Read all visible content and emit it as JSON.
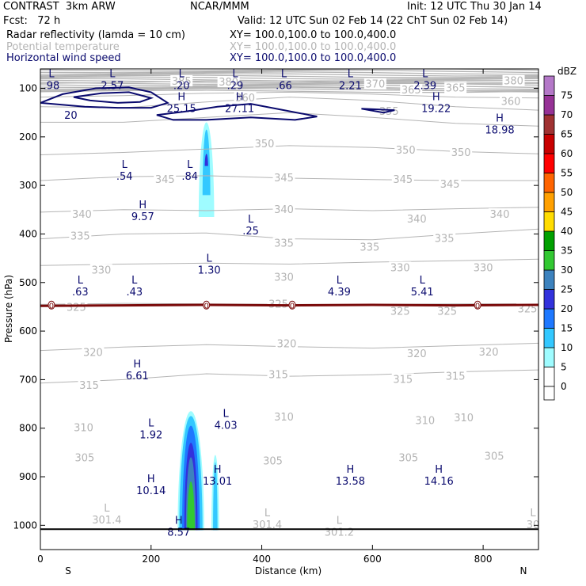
{
  "header": {
    "model": "CONTRAST  3km ARW",
    "org": "NCAR/MMM",
    "init": "Init: 12 UTC Thu 30 Jan 14",
    "fcst": "Fcst:   72 h",
    "valid": "Valid: 12 UTC Sun 02 Feb 14 (22 ChT Sun 02 Feb 14)",
    "fields": [
      {
        "name": "Radar reflectivity (lamda = 10 cm)",
        "xy": "XY= 100.0,100.0 to 100.0,400.0",
        "color": "#000000"
      },
      {
        "name": "Potential temperature",
        "xy": "XY= 100.0,100.0 to 100.0,400.0",
        "color": "#b4b4b4"
      },
      {
        "name": "Horizontal wind speed",
        "xy": "XY= 100.0,100.0 to 100.0,400.0",
        "color": "#0a0a6e"
      }
    ]
  },
  "chart_data": {
    "type": "cross-section",
    "xlabel": "Distance (km)",
    "ylabel": "Pressure (hPa)",
    "xlim": [
      0,
      900
    ],
    "ylim": [
      1050,
      60
    ],
    "xticks": [
      0,
      200,
      400,
      600,
      800
    ],
    "yticks": [
      100,
      200,
      300,
      400,
      500,
      600,
      700,
      800,
      900,
      1000
    ],
    "x_end_labels": {
      "left": "S",
      "right": "N"
    },
    "theta_contours": [
      {
        "value": 315,
        "x": [
          0,
          150,
          300,
          450,
          600,
          750,
          900
        ],
        "p": [
          707,
          700,
          688,
          693,
          690,
          684,
          680
        ]
      },
      {
        "value": 320,
        "x": [
          0,
          150,
          300,
          450,
          600,
          750,
          900
        ],
        "p": [
          640,
          633,
          628,
          632,
          635,
          630,
          625
        ]
      },
      {
        "value": 325,
        "x": [
          0,
          150,
          300,
          450,
          600,
          750,
          900
        ],
        "p": [
          545,
          543,
          544,
          545,
          545,
          544,
          544
        ]
      },
      {
        "value": 330,
        "x": [
          0,
          150,
          300,
          450,
          600,
          750,
          900
        ],
        "p": [
          465,
          462,
          460,
          462,
          458,
          455,
          452
        ]
      },
      {
        "value": 335,
        "x": [
          0,
          150,
          300,
          450,
          600,
          750,
          900
        ],
        "p": [
          410,
          400,
          398,
          410,
          412,
          400,
          390
        ]
      },
      {
        "value": 340,
        "x": [
          0,
          150,
          300,
          450,
          600,
          750,
          900
        ],
        "p": [
          355,
          350,
          352,
          348,
          352,
          348,
          345
        ]
      },
      {
        "value": 345,
        "x": [
          0,
          150,
          300,
          450,
          600,
          750,
          900
        ],
        "p": [
          290,
          282,
          280,
          285,
          288,
          290,
          290
        ]
      },
      {
        "value": 350,
        "x": [
          0,
          150,
          300,
          450,
          600,
          750,
          900
        ],
        "p": [
          237,
          232,
          225,
          218,
          222,
          230,
          235
        ]
      },
      {
        "value": 355,
        "x": [
          0,
          150,
          300,
          450,
          600,
          750,
          900
        ],
        "p": [
          170,
          170,
          160,
          150,
          160,
          172,
          178
        ]
      },
      {
        "value": 360,
        "x": [
          0,
          150,
          300,
          450,
          600,
          750,
          900
        ],
        "p": [
          138,
          140,
          128,
          118,
          125,
          138,
          145
        ]
      },
      {
        "value": 365,
        "x": [
          0,
          150,
          300,
          450,
          600,
          750,
          900
        ],
        "p": [
          118,
          115,
          110,
          108,
          112,
          118,
          120
        ]
      },
      {
        "value": 370,
        "x": [
          0,
          150,
          300,
          450,
          600,
          750,
          900
        ],
        "p": [
          105,
          103,
          100,
          98,
          100,
          105,
          108
        ]
      },
      {
        "value": 380,
        "x": [
          0,
          150,
          300,
          450,
          600,
          750,
          900
        ],
        "p": [
          90,
          88,
          85,
          85,
          88,
          90,
          90
        ]
      }
    ],
    "theta_labels": [
      {
        "text": "305",
        "x": 80,
        "p": 862
      },
      {
        "text": "305",
        "x": 420,
        "p": 868
      },
      {
        "text": "305",
        "x": 665,
        "p": 862
      },
      {
        "text": "305",
        "x": 820,
        "p": 858
      },
      {
        "text": "310",
        "x": 78,
        "p": 800
      },
      {
        "text": "310",
        "x": 440,
        "p": 778
      },
      {
        "text": "310",
        "x": 695,
        "p": 785
      },
      {
        "text": "310",
        "x": 765,
        "p": 779
      },
      {
        "text": "315",
        "x": 88,
        "p": 712
      },
      {
        "text": "315",
        "x": 430,
        "p": 690
      },
      {
        "text": "315",
        "x": 655,
        "p": 700
      },
      {
        "text": "315",
        "x": 750,
        "p": 694
      },
      {
        "text": "320",
        "x": 95,
        "p": 645
      },
      {
        "text": "320",
        "x": 445,
        "p": 627
      },
      {
        "text": "320",
        "x": 680,
        "p": 647
      },
      {
        "text": "320",
        "x": 810,
        "p": 644
      },
      {
        "text": "325",
        "x": 65,
        "p": 552
      },
      {
        "text": "325",
        "x": 430,
        "p": 545
      },
      {
        "text": "325",
        "x": 650,
        "p": 560
      },
      {
        "text": "325",
        "x": 735,
        "p": 560
      },
      {
        "text": "325",
        "x": 880,
        "p": 555
      },
      {
        "text": "330",
        "x": 110,
        "p": 475
      },
      {
        "text": "330",
        "x": 440,
        "p": 490
      },
      {
        "text": "330",
        "x": 650,
        "p": 470
      },
      {
        "text": "330",
        "x": 800,
        "p": 470
      },
      {
        "text": "335",
        "x": 72,
        "p": 405
      },
      {
        "text": "335",
        "x": 440,
        "p": 420
      },
      {
        "text": "335",
        "x": 595,
        "p": 428
      },
      {
        "text": "335",
        "x": 730,
        "p": 410
      },
      {
        "text": "340",
        "x": 75,
        "p": 360
      },
      {
        "text": "340",
        "x": 440,
        "p": 350
      },
      {
        "text": "340",
        "x": 680,
        "p": 370
      },
      {
        "text": "340",
        "x": 830,
        "p": 360
      },
      {
        "text": "345",
        "x": 225,
        "p": 288
      },
      {
        "text": "345",
        "x": 440,
        "p": 285
      },
      {
        "text": "345",
        "x": 655,
        "p": 288
      },
      {
        "text": "345",
        "x": 740,
        "p": 298
      },
      {
        "text": "350",
        "x": 405,
        "p": 215
      },
      {
        "text": "350",
        "x": 660,
        "p": 228
      },
      {
        "text": "350",
        "x": 760,
        "p": 233
      },
      {
        "text": "355",
        "x": 630,
        "p": 148
      },
      {
        "text": "360",
        "x": 370,
        "p": 120
      },
      {
        "text": "360",
        "x": 850,
        "p": 128
      },
      {
        "text": "365",
        "x": 670,
        "p": 104
      },
      {
        "text": "365",
        "x": 750,
        "p": 100
      },
      {
        "text": "370",
        "x": 605,
        "p": 92
      },
      {
        "text": "380",
        "x": 340,
        "p": 88
      },
      {
        "text": "380",
        "x": 855,
        "p": 85
      },
      {
        "text": "385",
        "x": 255,
        "p": 86
      }
    ],
    "wind_contours": [
      {
        "value": 20,
        "x": [
          0,
          40,
          100,
          160,
          200,
          230,
          200,
          140,
          80,
          0
        ],
        "p": [
          130,
          112,
          100,
          98,
          108,
          130,
          140,
          140,
          138,
          130
        ]
      },
      {
        "value": 20,
        "x": [
          60,
          110,
          160,
          200,
          180,
          140,
          90,
          60
        ],
        "p": [
          118,
          110,
          108,
          120,
          128,
          130,
          125,
          118
        ]
      },
      {
        "value": 20,
        "x": [
          210,
          260,
          320,
          380,
          440,
          500,
          460,
          380,
          300,
          240,
          210
        ],
        "p": [
          155,
          148,
          138,
          132,
          145,
          158,
          165,
          160,
          165,
          165,
          155
        ]
      },
      {
        "value": 20,
        "x": [
          580,
          640,
          620,
          580
        ],
        "p": [
          142,
          145,
          150,
          142
        ]
      }
    ],
    "wind_labels": [
      {
        "text": "20",
        "x": 55,
        "p": 155
      }
    ],
    "zero_line": {
      "label": "0",
      "x": [
        0,
        150,
        300,
        450,
        600,
        750,
        900
      ],
      "p": [
        548,
        547,
        546,
        547,
        546,
        547,
        546
      ],
      "markers_x": [
        20,
        300,
        455,
        790
      ]
    },
    "hl_labels": [
      {
        "letter": "L",
        "value": ".98",
        "x": 20,
        "p": 80
      },
      {
        "letter": "L",
        "value": "2.57",
        "x": 130,
        "p": 80
      },
      {
        "letter": "L",
        "value": ".20",
        "x": 255,
        "p": 80
      },
      {
        "letter": "L",
        "value": ".29",
        "x": 352,
        "p": 80
      },
      {
        "letter": "L",
        "value": ".66",
        "x": 440,
        "p": 80
      },
      {
        "letter": "L",
        "value": "2.21",
        "x": 560,
        "p": 80
      },
      {
        "letter": "L",
        "value": "2.39",
        "x": 695,
        "p": 80
      },
      {
        "letter": "H",
        "value": "25.15",
        "x": 255,
        "p": 128
      },
      {
        "letter": "H",
        "value": "27.11",
        "x": 360,
        "p": 128
      },
      {
        "letter": "H",
        "value": "19.22",
        "x": 715,
        "p": 128
      },
      {
        "letter": "H",
        "value": "18.98",
        "x": 830,
        "p": 172
      },
      {
        "letter": "L",
        "value": ".54",
        "x": 152,
        "p": 267
      },
      {
        "letter": "L",
        "value": ".84",
        "x": 270,
        "p": 267
      },
      {
        "letter": "H",
        "value": "9.57",
        "x": 185,
        "p": 350
      },
      {
        "letter": "L",
        "value": ".25",
        "x": 380,
        "p": 380
      },
      {
        "letter": "L",
        "value": "1.30",
        "x": 305,
        "p": 460
      },
      {
        "letter": "L",
        "value": ".63",
        "x": 72,
        "p": 505
      },
      {
        "letter": "L",
        "value": ".43",
        "x": 170,
        "p": 505
      },
      {
        "letter": "L",
        "value": "4.39",
        "x": 540,
        "p": 505
      },
      {
        "letter": "L",
        "value": "5.41",
        "x": 690,
        "p": 505
      },
      {
        "letter": "H",
        "value": "6.61",
        "x": 175,
        "p": 678
      },
      {
        "letter": "L",
        "value": "4.03",
        "x": 335,
        "p": 780
      },
      {
        "letter": "L",
        "value": "1.92",
        "x": 200,
        "p": 800
      },
      {
        "letter": "H",
        "value": "13.01",
        "x": 320,
        "p": 895
      },
      {
        "letter": "H",
        "value": "13.58",
        "x": 560,
        "p": 895
      },
      {
        "letter": "H",
        "value": "14.16",
        "x": 720,
        "p": 895
      },
      {
        "letter": "H",
        "value": "10.14",
        "x": 200,
        "p": 915
      },
      {
        "letter": "H",
        "value": "8.57",
        "x": 250,
        "p": 1000
      },
      {
        "letter": "L",
        "value": "301.4",
        "x": 120,
        "p": 975,
        "color": "#b4b4b4"
      },
      {
        "letter": "L",
        "value": "301.4",
        "x": 410,
        "p": 985,
        "color": "#b4b4b4"
      },
      {
        "letter": "L",
        "value": "301.2",
        "x": 540,
        "p": 1000,
        "color": "#b4b4b4"
      },
      {
        "letter": "L",
        "value": "30",
        "x": 890,
        "p": 985,
        "color": "#b4b4b4"
      }
    ],
    "reflectivity_cells": [
      {
        "dbz": 5,
        "cx": 300,
        "p_top": 170,
        "p_bot": 365,
        "hw": 14
      },
      {
        "dbz": 10,
        "cx": 300,
        "p_top": 185,
        "p_bot": 320,
        "hw": 7
      },
      {
        "dbz": 20,
        "cx": 300,
        "p_top": 235,
        "p_bot": 260,
        "hw": 3
      },
      {
        "dbz": 5,
        "cx": 272,
        "p_top": 765,
        "p_bot": 1010,
        "hw": 24
      },
      {
        "dbz": 10,
        "cx": 272,
        "p_top": 775,
        "p_bot": 1010,
        "hw": 21
      },
      {
        "dbz": 15,
        "cx": 272,
        "p_top": 795,
        "p_bot": 1010,
        "hw": 16
      },
      {
        "dbz": 20,
        "cx": 272,
        "p_top": 830,
        "p_bot": 1010,
        "hw": 12
      },
      {
        "dbz": 25,
        "cx": 272,
        "p_top": 860,
        "p_bot": 1010,
        "hw": 9
      },
      {
        "dbz": 30,
        "cx": 272,
        "p_top": 910,
        "p_bot": 1010,
        "hw": 7
      },
      {
        "dbz": 5,
        "cx": 316,
        "p_top": 855,
        "p_bot": 1010,
        "hw": 7
      },
      {
        "dbz": 10,
        "cx": 316,
        "p_top": 870,
        "p_bot": 1010,
        "hw": 4
      }
    ],
    "colorbar": {
      "unit": "dBZ",
      "levels": [
        0,
        5,
        10,
        15,
        20,
        25,
        30,
        35,
        40,
        45,
        50,
        55,
        60,
        65,
        70,
        75
      ],
      "colors": [
        "#ffffff",
        "#9ffcff",
        "#33c8ff",
        "#1e78ff",
        "#3232dc",
        "#3c82be",
        "#32c832",
        "#00a000",
        "#ffdc00",
        "#ffa000",
        "#ff6400",
        "#ff0000",
        "#c80000",
        "#a03232",
        "#963296",
        "#b478c8"
      ]
    },
    "colors": {
      "wind": "#0a0a6e",
      "theta": "#b4b4b4",
      "zero_line": "#7a0a0a",
      "terrain": "#000000"
    }
  }
}
